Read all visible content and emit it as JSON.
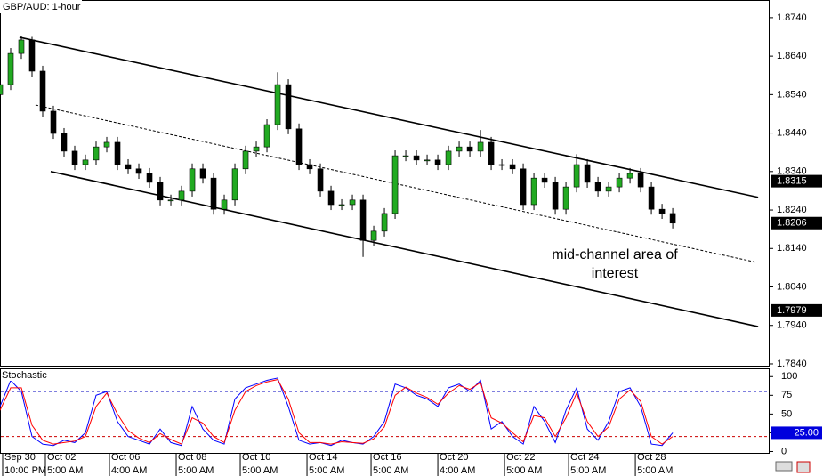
{
  "chart_data": [
    {
      "type": "candlestick",
      "title": "GBP/AUD: 1-hour",
      "x": [
        0,
        4,
        8,
        12,
        16,
        20,
        24,
        28,
        32,
        36,
        40,
        44,
        48,
        52,
        56,
        60,
        64,
        68,
        72,
        76,
        80,
        84,
        88,
        92,
        96,
        100,
        104,
        108,
        112,
        116,
        120,
        124,
        128,
        132,
        136,
        140,
        144,
        148,
        152,
        156,
        160,
        164,
        168,
        172,
        176,
        180,
        184,
        188,
        192,
        196,
        200,
        204,
        208,
        212,
        216,
        220,
        224,
        228,
        232,
        236,
        240,
        244,
        248,
        252
      ],
      "open": [
        1.854,
        1.8566,
        1.8647,
        1.8682,
        1.8601,
        1.8497,
        1.8439,
        1.8393,
        1.8358,
        1.837,
        1.8404,
        1.8416,
        1.8358,
        1.8347,
        1.8335,
        1.8312,
        1.8266,
        1.8266,
        1.8289,
        1.8347,
        1.8323,
        1.8242,
        1.8266,
        1.8347,
        1.8393,
        1.8404,
        1.8462,
        1.8566,
        1.8451,
        1.8358,
        1.8347,
        1.8289,
        1.8254,
        1.8254,
        1.8266,
        1.8161,
        1.8185,
        1.8231,
        1.8381,
        1.8381,
        1.837,
        1.837,
        1.8358,
        1.8393,
        1.8404,
        1.8393,
        1.8416,
        1.8358,
        1.8358,
        1.8347,
        1.8254,
        1.8323,
        1.8312,
        1.8242,
        1.83,
        1.8358,
        1.8312,
        1.8289,
        1.83,
        1.8323,
        1.8335,
        1.83,
        1.8242,
        1.8231
      ],
      "high": [
        1.858,
        1.8661,
        1.8692,
        1.869,
        1.8615,
        1.8511,
        1.8453,
        1.8407,
        1.8384,
        1.8418,
        1.843,
        1.843,
        1.8372,
        1.8361,
        1.8349,
        1.8326,
        1.828,
        1.8303,
        1.8361,
        1.8361,
        1.8337,
        1.828,
        1.8361,
        1.8407,
        1.8418,
        1.8476,
        1.8598,
        1.858,
        1.8465,
        1.8372,
        1.8361,
        1.8303,
        1.8268,
        1.828,
        1.828,
        1.8199,
        1.8245,
        1.8395,
        1.8395,
        1.8395,
        1.8384,
        1.8384,
        1.8407,
        1.8418,
        1.8418,
        1.8448,
        1.843,
        1.8372,
        1.8372,
        1.8361,
        1.8337,
        1.8337,
        1.8326,
        1.8314,
        1.8385,
        1.8372,
        1.8326,
        1.8314,
        1.8337,
        1.8349,
        1.8349,
        1.8314,
        1.8256,
        1.8245
      ],
      "low": [
        1.8526,
        1.8552,
        1.8633,
        1.8587,
        1.8483,
        1.8425,
        1.8379,
        1.8344,
        1.8344,
        1.8356,
        1.839,
        1.8344,
        1.8333,
        1.8321,
        1.8298,
        1.8252,
        1.8252,
        1.8252,
        1.8275,
        1.8309,
        1.8228,
        1.8228,
        1.8252,
        1.8333,
        1.8379,
        1.839,
        1.8448,
        1.8437,
        1.8344,
        1.8333,
        1.8275,
        1.824,
        1.824,
        1.824,
        1.8118,
        1.8147,
        1.8171,
        1.8217,
        1.8367,
        1.8356,
        1.8356,
        1.8344,
        1.8344,
        1.8379,
        1.8379,
        1.8379,
        1.8344,
        1.8344,
        1.8333,
        1.824,
        1.824,
        1.8298,
        1.8228,
        1.8228,
        1.8286,
        1.8298,
        1.8275,
        1.8275,
        1.8286,
        1.8309,
        1.8286,
        1.8228,
        1.8217,
        1.8192
      ],
      "close": [
        1.8566,
        1.8647,
        1.8682,
        1.8601,
        1.8497,
        1.8439,
        1.8393,
        1.8358,
        1.837,
        1.8404,
        1.8416,
        1.8358,
        1.8347,
        1.8335,
        1.8312,
        1.8266,
        1.8266,
        1.8289,
        1.8347,
        1.8323,
        1.8242,
        1.8266,
        1.8347,
        1.8393,
        1.8404,
        1.8462,
        1.8566,
        1.8451,
        1.8358,
        1.8347,
        1.8289,
        1.8254,
        1.8254,
        1.8266,
        1.8161,
        1.8185,
        1.8231,
        1.8381,
        1.8381,
        1.837,
        1.837,
        1.8358,
        1.8393,
        1.8404,
        1.8393,
        1.8416,
        1.8358,
        1.8358,
        1.8347,
        1.8254,
        1.8323,
        1.8312,
        1.8242,
        1.83,
        1.8358,
        1.8312,
        1.8289,
        1.83,
        1.8323,
        1.8335,
        1.83,
        1.8242,
        1.8231,
        1.8206
      ],
      "up_color": "#22aa22",
      "down_color": "#000000",
      "xlim": [
        0,
        288.3
      ],
      "ylim": [
        1.7833,
        1.8786
      ],
      "yticks": [
        {
          "value": 1.874,
          "label": "1.8740"
        },
        {
          "value": 1.864,
          "label": "1.8640"
        },
        {
          "value": 1.854,
          "label": "1.8540"
        },
        {
          "value": 1.844,
          "label": "1.8440"
        },
        {
          "value": 1.834,
          "label": "1.8340"
        },
        {
          "value": 1.824,
          "label": "1.8240"
        },
        {
          "value": 1.814,
          "label": "1.8140"
        },
        {
          "value": 1.804,
          "label": "1.8040"
        },
        {
          "value": 1.794,
          "label": "1.7940"
        },
        {
          "value": 1.784,
          "label": "1.7840"
        }
      ],
      "price_labels": [
        1.8315,
        1.8206,
        1.7979
      ],
      "lines": [
        {
          "x1": 7.3,
          "y1": 1.8689,
          "x2": 284,
          "y2": 1.8273,
          "style": "solid"
        },
        {
          "x1": 13.3,
          "y1": 1.8513,
          "x2": 283.3,
          "y2": 1.8104,
          "style": "dashed"
        },
        {
          "x1": 19,
          "y1": 1.834,
          "x2": 284,
          "y2": 1.7937,
          "style": "solid"
        }
      ],
      "annotation": [
        "mid-channel area of",
        "interest"
      ]
    },
    {
      "type": "line",
      "title": "Stochastic",
      "x": [
        0,
        4,
        8,
        12,
        16,
        20,
        24,
        28,
        32,
        36,
        40,
        44,
        48,
        52,
        56,
        60,
        64,
        68,
        72,
        76,
        80,
        84,
        88,
        92,
        96,
        100,
        104,
        108,
        112,
        116,
        120,
        124,
        128,
        132,
        136,
        140,
        144,
        148,
        152,
        156,
        160,
        164,
        168,
        172,
        176,
        180,
        184,
        188,
        192,
        196,
        200,
        204,
        208,
        212,
        216,
        220,
        224,
        228,
        232,
        236,
        240,
        244,
        248,
        252
      ],
      "series": [
        {
          "color": "#0000ff",
          "values": [
            60,
            95,
            80,
            20,
            10,
            8,
            15,
            12,
            25,
            75,
            80,
            40,
            20,
            15,
            10,
            30,
            12,
            8,
            60,
            30,
            15,
            10,
            70,
            85,
            90,
            95,
            98,
            60,
            15,
            10,
            12,
            8,
            15,
            12,
            10,
            20,
            40,
            90,
            85,
            75,
            70,
            60,
            85,
            90,
            80,
            95,
            30,
            40,
            20,
            10,
            60,
            40,
            12,
            55,
            85,
            30,
            15,
            40,
            80,
            85,
            60,
            10,
            8,
            25
          ]
        },
        {
          "color": "#ff0000",
          "values": [
            55,
            85,
            85,
            35,
            15,
            10,
            12,
            14,
            20,
            60,
            78,
            50,
            28,
            18,
            12,
            24,
            16,
            10,
            45,
            38,
            20,
            12,
            55,
            80,
            88,
            93,
            96,
            70,
            25,
            12,
            12,
            10,
            13,
            12,
            11,
            17,
            33,
            75,
            86,
            78,
            72,
            63,
            78,
            88,
            83,
            92,
            45,
            38,
            25,
            13,
            48,
            45,
            20,
            45,
            78,
            40,
            20,
            33,
            70,
            82,
            67,
            20,
            10,
            20
          ]
        }
      ],
      "levels": [
        {
          "value": 80,
          "color": "#3333cc"
        },
        {
          "value": 20,
          "color": "#cc0000"
        }
      ],
      "last_value": {
        "value": 25,
        "label": "25.00"
      },
      "xlim": [
        0,
        288.3
      ],
      "ylim": [
        -3,
        111
      ],
      "yticks": [
        100,
        75,
        50,
        25,
        0
      ],
      "xticks": [
        {
          "value": 1,
          "label": "Sep 30",
          "time": "10:00 PM"
        },
        {
          "value": 17,
          "label": "Oct 02",
          "time": "5:00 AM"
        },
        {
          "value": 41,
          "label": "Oct 06",
          "time": "4:00 AM"
        },
        {
          "value": 66,
          "label": "Oct 08",
          "time": "5:00 AM"
        },
        {
          "value": 90,
          "label": "Oct 10",
          "time": "5:00 AM"
        },
        {
          "value": 115,
          "label": "Oct 14",
          "time": "5:00 AM"
        },
        {
          "value": 139,
          "label": "Oct 16",
          "time": "5:00 AM"
        },
        {
          "value": 164,
          "label": "Oct 20",
          "time": "4:00 AM"
        },
        {
          "value": 189,
          "label": "Oct 22",
          "time": "5:00 AM"
        },
        {
          "value": 213,
          "label": "Oct 24",
          "time": "5:00 AM"
        },
        {
          "value": 238,
          "label": "Oct 28",
          "time": "5:00 AM"
        }
      ]
    }
  ]
}
